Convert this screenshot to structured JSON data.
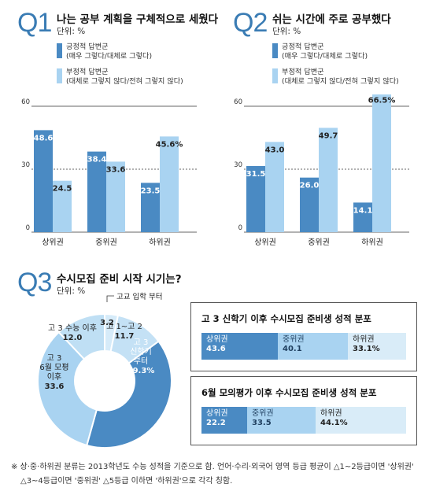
{
  "colors": {
    "positive": "#4a8ac3",
    "negative": "#a9d3f1",
    "accent": "#3a7cb4",
    "lightest": "#d9ecf8"
  },
  "q1": {
    "number": "Q1",
    "title": "나는 공부 계획을 구체적으로 세웠다",
    "unit": "단위: %",
    "legend": [
      {
        "line1": "긍정적 답변군",
        "line2": "(매우 그렇다/대체로 그렇다)"
      },
      {
        "line1": "부정적 답변군",
        "line2": "(대체로 그렇지 않다/전혀 그렇지 않다)"
      }
    ]
  },
  "q2": {
    "number": "Q2",
    "title": "쉬는 시간에 주로 공부했다",
    "unit": "단위: %",
    "legend": [
      {
        "line1": "긍정적 답변군",
        "line2": "(매우 그렇다/대체로 그렇다)"
      },
      {
        "line1": "부정적 답변군",
        "line2": "(대체로 그렇지 않다/전혀 그렇지 않다)"
      }
    ]
  },
  "q3": {
    "number": "Q3",
    "title": "수시모집 준비 시작 시기는?",
    "unit": "단위: %"
  },
  "box1": {
    "title": "고 3 신학기 이후 수시모집 준비생 성적 분포",
    "segments": [
      {
        "label": "상위권",
        "value": "43.6",
        "share": 43.6
      },
      {
        "label": "중위권",
        "value": "40.1",
        "share": 40.1
      },
      {
        "label": "하위권",
        "value": "33.1%",
        "share": 33.1
      }
    ]
  },
  "box2": {
    "title": "6월 모의평가 이후 수시모집 준비생 성적 분포",
    "segments": [
      {
        "label": "상위권",
        "value": "22.2",
        "share": 22.2
      },
      {
        "label": "중위권",
        "value": "33.5",
        "share": 33.5
      },
      {
        "label": "하위권",
        "value": "44.1%",
        "share": 44.1
      }
    ]
  },
  "footnote": {
    "line1": "※ 상·중·하위권 분류는 2013학년도 수능 성적을 기준으로 함. 언어·수리·외국어 영역 등급 평균이 △1~2등급이면 '상위권'",
    "line2": "△3~4등급이면 '중위권' △5등급 이하면 '하위권'으로 각각 칭함."
  },
  "chart_data": [
    {
      "type": "bar",
      "title": "나는 공부 계획을 구체적으로 세웠다",
      "categories": [
        "상위권",
        "중위권",
        "하위권"
      ],
      "series": [
        {
          "name": "긍정적 답변군",
          "values": [
            48.6,
            38.4,
            23.5
          ]
        },
        {
          "name": "부정적 답변군",
          "values": [
            24.5,
            33.6,
            45.6
          ]
        }
      ],
      "value_labels": [
        [
          "48.6",
          "38.4",
          "23.5"
        ],
        [
          "24.5",
          "33.6",
          "45.6%"
        ]
      ],
      "yticks": [
        "0",
        "30",
        "60"
      ],
      "ylim": [
        0,
        60
      ],
      "grid": "dashed line at 30"
    },
    {
      "type": "bar",
      "title": "쉬는 시간에 주로 공부했다",
      "categories": [
        "상위권",
        "중위권",
        "하위권"
      ],
      "series": [
        {
          "name": "긍정적 답변군",
          "values": [
            31.5,
            26.0,
            14.1
          ]
        },
        {
          "name": "부정적 답변군",
          "values": [
            43.0,
            49.7,
            66.5
          ]
        }
      ],
      "value_labels": [
        [
          "31.5",
          "26.0",
          "14.1"
        ],
        [
          "43.0",
          "49.7",
          "66.5%"
        ]
      ],
      "yticks": [
        "0",
        "30",
        "60"
      ],
      "ylim": [
        0,
        60
      ],
      "grid": "dashed line at 30"
    },
    {
      "type": "pie",
      "title": "수시모집 준비 시작 시기는?",
      "slices": [
        {
          "label": "고교 입학 부터",
          "value": 3.2,
          "text": "3.2"
        },
        {
          "label": "고 1~고 2",
          "value": 11.7,
          "text": "11.7"
        },
        {
          "label": "고 3 신학기 부터",
          "value": 39.3,
          "text": "39.3%"
        },
        {
          "label": "고 3 6월 모평 이후",
          "value": 33.6,
          "text": "33.6"
        },
        {
          "label": "고 3 수능 이후",
          "value": 12.0,
          "text": "12.0"
        }
      ]
    }
  ]
}
